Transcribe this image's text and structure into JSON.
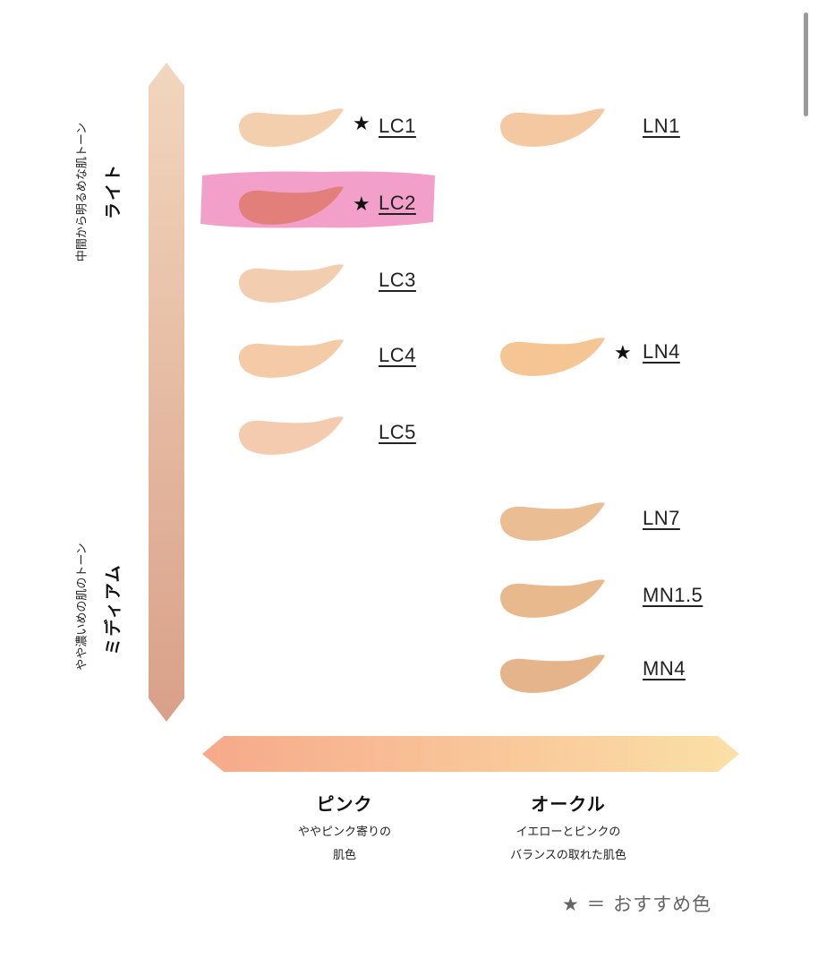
{
  "vertical_axis": {
    "top_sub": "中間から明るめな肌トーン",
    "top_main": "ライト",
    "bottom_sub": "やや濃いめの肌のトーン",
    "bottom_main": "ミディアム"
  },
  "horizontal_axis": {
    "left_title": "ピンク",
    "left_desc_1": "ややピンク寄りの",
    "left_desc_2": "肌色",
    "right_title": "オークル",
    "right_desc_1": "イエローとピンクの",
    "right_desc_2": "バランスの取れた肌色"
  },
  "shades": [
    {
      "code": "LC1",
      "star": "★",
      "color": "#f3cfae"
    },
    {
      "code": "LC2",
      "star": "★",
      "color": "#e37f7a"
    },
    {
      "code": "LC3",
      "star": "",
      "color": "#f3cdb0"
    },
    {
      "code": "LC4",
      "star": "",
      "color": "#f4caa7"
    },
    {
      "code": "LC5",
      "star": "",
      "color": "#f5cbb0"
    },
    {
      "code": "LN1",
      "star": "",
      "color": "#f4c8a1"
    },
    {
      "code": "LN4",
      "star": "★",
      "color": "#f5c694"
    },
    {
      "code": "LN7",
      "star": "",
      "color": "#ebbd93"
    },
    {
      "code": "MN1.5",
      "star": "",
      "color": "#e9b98e"
    },
    {
      "code": "MN4",
      "star": "",
      "color": "#e6b48b"
    }
  ],
  "legend": {
    "text": "★ ＝ おすすめ色"
  },
  "colors": {
    "highlight": "#f08fc0",
    "vertical_arrow_top": "#f2d6be",
    "vertical_arrow_bottom": "#d9a088",
    "horizontal_arrow_left": "#f6a98a",
    "horizontal_arrow_right": "#fbe0a6"
  }
}
